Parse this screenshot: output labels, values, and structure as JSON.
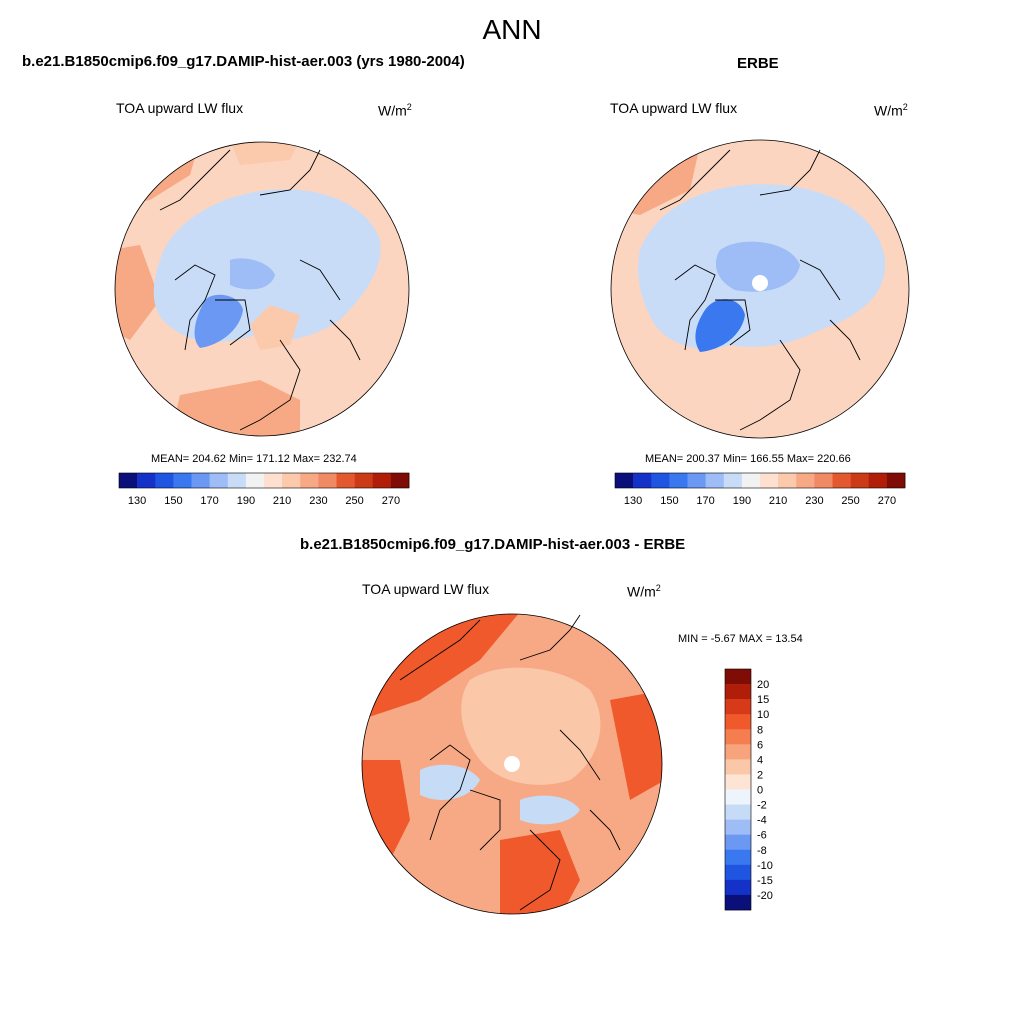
{
  "main_title": "ANN",
  "panels": [
    {
      "title": "b.e21.B1850cmip6.f09_g17.DAMIP-hist-aer.003 (yrs 1980-2004)",
      "variable": "TOA upward LW flux",
      "units_base": "W/m",
      "units_exp": "2",
      "mean_text": "MEAN= 204.62  Min= 171.12  Max= 232.74"
    },
    {
      "title": "ERBE",
      "variable": "TOA upward LW flux",
      "units_base": "W/m",
      "units_exp": "2",
      "mean_text": "MEAN= 200.37  Min= 166.55  Max= 220.66"
    },
    {
      "title": "b.e21.B1850cmip6.f09_g17.DAMIP-hist-aer.003 - ERBE",
      "variable": "TOA upward LW flux",
      "units_base": "W/m",
      "units_exp": "2",
      "mean_text": "MIN =  -5.67 MAX =  13.54"
    }
  ],
  "chart_data": [
    {
      "type": "heatmap",
      "projection": "north-polar-stereographic",
      "title": "b.e21.B1850cmip6.f09_g17.DAMIP-hist-aer.003 (yrs 1980-2004)",
      "variable": "TOA upward LW flux",
      "units": "W/m2",
      "mean": 204.62,
      "min": 171.12,
      "max": 232.74,
      "levels": [
        130,
        140,
        150,
        160,
        170,
        180,
        190,
        200,
        210,
        220,
        230,
        240,
        250,
        260,
        270
      ],
      "tick_labels": [
        "130",
        "150",
        "170",
        "190",
        "210",
        "230",
        "250",
        "270"
      ],
      "colorbar": "horizontal-bottom"
    },
    {
      "type": "heatmap",
      "projection": "north-polar-stereographic",
      "title": "ERBE",
      "variable": "TOA upward LW flux",
      "units": "W/m2",
      "mean": 200.37,
      "min": 166.55,
      "max": 220.66,
      "levels": [
        130,
        140,
        150,
        160,
        170,
        180,
        190,
        200,
        210,
        220,
        230,
        240,
        250,
        260,
        270
      ],
      "tick_labels": [
        "130",
        "150",
        "170",
        "190",
        "210",
        "230",
        "250",
        "270"
      ],
      "colorbar": "horizontal-bottom"
    },
    {
      "type": "heatmap",
      "projection": "north-polar-stereographic",
      "title": "b.e21.B1850cmip6.f09_g17.DAMIP-hist-aer.003 - ERBE",
      "variable": "TOA upward LW flux",
      "units": "W/m2",
      "min": -5.67,
      "max": 13.54,
      "levels": [
        -20,
        -15,
        -10,
        -8,
        -6,
        -4,
        -2,
        0,
        2,
        4,
        6,
        8,
        10,
        15,
        20
      ],
      "tick_labels": [
        "20",
        "15",
        "10",
        "8",
        "6",
        "4",
        "2",
        "0",
        "-2",
        "-4",
        "-6",
        "-8",
        "-10",
        "-15",
        "-20"
      ],
      "colorbar": "vertical-right"
    }
  ],
  "colors": {
    "abs_palette": [
      "#0a0f7a",
      "#1432c8",
      "#1f55e0",
      "#3a78f0",
      "#6a98f2",
      "#9ebcf5",
      "#c8dcf8",
      "#f2f2f2",
      "#fde0cf",
      "#fbc9ac",
      "#f7a985",
      "#f08a65",
      "#e4582f",
      "#cc3a18",
      "#b01e0a",
      "#800c06"
    ],
    "diff_palette": [
      "#800c06",
      "#b01e0a",
      "#d63a18",
      "#f0592c",
      "#f47e50",
      "#f7a47c",
      "#fbc7a9",
      "#fde4d4",
      "#eef4fc",
      "#c6dbf6",
      "#9ebcf5",
      "#6a98f2",
      "#3a78f0",
      "#1f55e0",
      "#1432c8",
      "#0a0f7a"
    ]
  }
}
